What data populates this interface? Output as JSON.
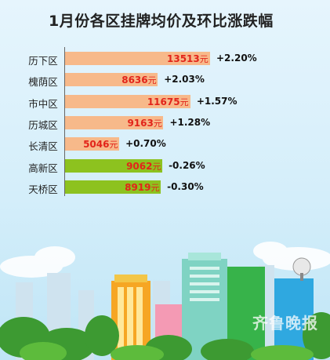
{
  "chart_data": {
    "type": "bar",
    "title": "1月份各区挂牌均价及环比涨跌幅",
    "unit": "元",
    "categories": [
      "历下区",
      "槐荫区",
      "市中区",
      "历城区",
      "长清区",
      "高新区",
      "天桥区"
    ],
    "values": [
      13513,
      8636,
      11675,
      9163,
      5046,
      9062,
      8919
    ],
    "changes": [
      "+2.20%",
      "+2.03%",
      "+1.57%",
      "+1.28%",
      "+0.70%",
      "-0.26%",
      "-0.30%"
    ],
    "colors": {
      "rising": "#f7b98a",
      "falling": "#8dc21f",
      "value_text": "#e2241a"
    }
  },
  "watermark": "齐鲁晚报"
}
